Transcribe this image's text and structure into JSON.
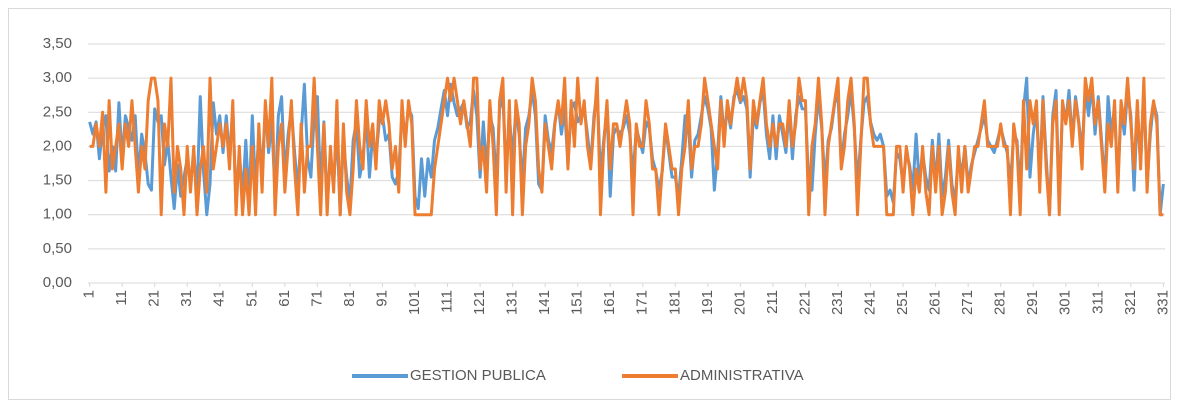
{
  "chart_data": {
    "type": "line",
    "x": [
      1,
      2,
      3,
      4,
      5,
      6,
      7,
      8,
      9,
      10,
      11,
      12,
      13,
      14,
      15,
      16,
      17,
      18,
      19,
      20,
      21,
      22,
      23,
      24,
      25,
      26,
      27,
      28,
      29,
      30,
      31,
      32,
      33,
      34,
      35,
      36,
      37,
      38,
      39,
      40,
      41,
      42,
      43,
      44,
      45,
      46,
      47,
      48,
      49,
      50,
      51,
      52,
      53,
      54,
      55,
      56,
      57,
      58,
      59,
      60,
      61,
      62,
      63,
      64,
      65,
      66,
      67,
      68,
      69,
      70,
      71,
      72,
      73,
      74,
      75,
      76,
      77,
      78,
      79,
      80,
      81,
      82,
      83,
      84,
      85,
      86,
      87,
      88,
      89,
      90,
      91,
      92,
      93,
      94,
      95,
      96,
      97,
      98,
      99,
      100,
      101,
      102,
      103,
      104,
      105,
      106,
      107,
      108,
      109,
      110,
      111,
      112,
      113,
      114,
      115,
      116,
      117,
      118,
      119,
      120,
      121,
      122,
      123,
      124,
      125,
      126,
      127,
      128,
      129,
      130,
      131,
      132,
      133,
      134,
      135,
      136,
      137,
      138,
      139,
      140,
      141,
      142,
      143,
      144,
      145,
      146,
      147,
      148,
      149,
      150,
      151,
      152,
      153,
      154,
      155,
      156,
      157,
      158,
      159,
      160,
      161,
      162,
      163,
      164,
      165,
      166,
      167,
      168,
      169,
      170,
      171,
      172,
      173,
      174,
      175,
      176,
      177,
      178,
      179,
      180,
      181,
      182,
      183,
      184,
      185,
      186,
      187,
      188,
      189,
      190,
      191,
      192,
      193,
      194,
      195,
      196,
      197,
      198,
      199,
      200,
      201,
      202,
      203,
      204,
      205,
      206,
      207,
      208,
      209,
      210,
      211,
      212,
      213,
      214,
      215,
      216,
      217,
      218,
      219,
      220,
      221,
      222,
      223,
      224,
      225,
      226,
      227,
      228,
      229,
      230,
      231,
      232,
      233,
      234,
      235,
      236,
      237,
      238,
      239,
      240,
      241,
      242,
      243,
      244,
      245,
      246,
      247,
      248,
      249,
      250,
      251,
      252,
      253,
      254,
      255,
      256,
      257,
      258,
      259,
      260,
      261,
      262,
      263,
      264,
      265,
      266,
      267,
      268,
      269,
      270,
      271,
      272,
      273,
      274,
      275,
      276,
      277,
      278,
      279,
      280,
      281,
      282,
      283,
      284,
      285,
      286,
      287,
      288,
      289,
      290,
      291,
      292,
      293,
      294,
      295,
      296,
      297,
      298,
      299,
      300,
      301,
      302,
      303,
      304,
      305,
      306,
      307,
      308,
      309,
      310,
      311,
      312,
      313,
      314,
      315,
      316,
      317,
      318,
      319,
      320,
      321,
      322,
      323,
      324,
      325,
      326,
      327,
      328,
      329,
      330,
      331
    ],
    "xlim": [
      1,
      331
    ],
    "xticks": [
      1,
      11,
      21,
      31,
      41,
      51,
      61,
      71,
      81,
      91,
      101,
      111,
      121,
      131,
      141,
      151,
      161,
      171,
      181,
      191,
      201,
      211,
      221,
      231,
      241,
      251,
      261,
      271,
      281,
      291,
      301,
      311,
      321,
      331
    ],
    "ylim": [
      0,
      3.5
    ],
    "yticks": [
      {
        "value": 0,
        "label": "0,00"
      },
      {
        "value": 0.5,
        "label": "0,50"
      },
      {
        "value": 1,
        "label": "1,00"
      },
      {
        "value": 1.5,
        "label": "1,50"
      },
      {
        "value": 2,
        "label": "2,00"
      },
      {
        "value": 2.5,
        "label": "2,50"
      },
      {
        "value": 3,
        "label": "3,00"
      },
      {
        "value": 3.5,
        "label": "3,50"
      }
    ],
    "grid": true,
    "legend": "bottom",
    "series": [
      {
        "name": "GESTION PUBLICA",
        "color": "#5b9bd5",
        "values": [
          2.36,
          2.18,
          2.36,
          1.82,
          2.27,
          2.45,
          1.64,
          2,
          1.64,
          2.64,
          1.82,
          2.45,
          2.27,
          2.09,
          2.45,
          1.55,
          2.18,
          1.91,
          1.45,
          1.36,
          2.55,
          2.36,
          2.45,
          1.73,
          2.09,
          1.55,
          1.09,
          1.73,
          1.27,
          1.55,
          1.82,
          1.45,
          1.91,
          1.27,
          2.73,
          1.64,
          1,
          1.45,
          2.64,
          2.18,
          2.45,
          1.91,
          2.45,
          1.82,
          2.55,
          1.18,
          1.91,
          1.27,
          2.09,
          1.18,
          2.45,
          1.36,
          2.18,
          1.64,
          2.55,
          1.91,
          2.36,
          1.27,
          2.45,
          2.73,
          1.55,
          2.18,
          2.55,
          1.91,
          1.36,
          2.18,
          2.91,
          1.82,
          1.55,
          2.45,
          2.73,
          1.36,
          2.36,
          1.18,
          1.82,
          1.45,
          2.27,
          1,
          2.09,
          1.55,
          1.18,
          2.09,
          2.36,
          1.55,
          1.82,
          2.45,
          1.55,
          2.18,
          1.82,
          2.36,
          2.45,
          2.09,
          2.18,
          1.55,
          1.45,
          1.64,
          2.45,
          2.18,
          2.55,
          2.45,
          1.27,
          1.09,
          1.82,
          1.27,
          1.82,
          1.55,
          2.09,
          2.27,
          2.55,
          2.82,
          2.45,
          2.91,
          2.64,
          2.45,
          2.55,
          2.64,
          2.27,
          2.36,
          2.82,
          2.45,
          1.55,
          2.36,
          1.64,
          2.45,
          2.27,
          1.45,
          2.55,
          2.73,
          1.64,
          2.45,
          1.82,
          2.55,
          2.18,
          1.45,
          2.27,
          2.45,
          2.82,
          2.45,
          1.45,
          1.36,
          2.45,
          2.09,
          1.91,
          2.36,
          2.64,
          2.18,
          2.55,
          1.73,
          2.55,
          2.64,
          2.36,
          2.45,
          2.55,
          2.18,
          1.73,
          2.45,
          2.82,
          1.55,
          2.09,
          2.55,
          1.27,
          2.18,
          2.27,
          2.18,
          2.27,
          2.45,
          2.18,
          1.55,
          2.27,
          2.09,
          1.91,
          2.36,
          2.27,
          1.82,
          1.64,
          1.36,
          1.64,
          2.27,
          1.91,
          1.55,
          1.55,
          1.27,
          1.82,
          2.45,
          2.36,
          1.55,
          2.09,
          2.18,
          2.45,
          2.73,
          2.55,
          2.27,
          1.36,
          1.91,
          2.73,
          2.18,
          2.55,
          2.27,
          2.73,
          2.82,
          2.64,
          2.73,
          2.55,
          1.55,
          2.45,
          2.27,
          2.64,
          2.82,
          2.18,
          1.82,
          2.45,
          1.82,
          2.45,
          2.18,
          1.91,
          2.55,
          1.82,
          2.45,
          2.73,
          2.55,
          2.55,
          1.45,
          1.36,
          2.18,
          2.73,
          2.27,
          1.45,
          2.09,
          2.27,
          2.64,
          2.73,
          1.73,
          2.18,
          2.45,
          2.82,
          2.27,
          1.45,
          2.09,
          2.64,
          2.73,
          2.36,
          2.18,
          2.09,
          2.18,
          2,
          1.27,
          1.36,
          1.18,
          1.91,
          1.82,
          1.45,
          1.91,
          1.73,
          1.36,
          2.18,
          1.45,
          1.91,
          1.55,
          1.36,
          2.09,
          1.45,
          2.18,
          1.27,
          1.55,
          2.09,
          1.45,
          1.18,
          1.91,
          1.55,
          2,
          1.45,
          1.73,
          1.91,
          2.09,
          2.27,
          2.45,
          2.09,
          2,
          1.91,
          2.09,
          2.27,
          2.09,
          1.91,
          1.45,
          2.18,
          2.09,
          1.36,
          2.55,
          3,
          1.55,
          2.18,
          2.55,
          1.55,
          2.73,
          1.82,
          1,
          2.45,
          2.82,
          1.18,
          2.55,
          2.36,
          2.82,
          2.09,
          2.73,
          2.36,
          1.91,
          2.82,
          2.45,
          2.91,
          2.18,
          2.73,
          2.09,
          1.45,
          2.73,
          2.18,
          2.55,
          1.45,
          2.55,
          2.18,
          2.82,
          2.45,
          1.36,
          2.55,
          1.73,
          2.82,
          1.45,
          2.18,
          2.64,
          2.45,
          1,
          1.45
        ]
      },
      {
        "name": "ADMINISTRATIVA",
        "color": "#ed7d31",
        "values": [
          2,
          2,
          2.33,
          2,
          2.5,
          1.33,
          2.67,
          1.67,
          2,
          2.33,
          1.67,
          2.33,
          2,
          2.67,
          2,
          1.33,
          2,
          1.67,
          2.67,
          3,
          3,
          2.67,
          1,
          2.33,
          2,
          3,
          1.33,
          2,
          1.67,
          1,
          2,
          1.33,
          2,
          1,
          1.67,
          2,
          1.33,
          3,
          1.67,
          2,
          2.33,
          2,
          2.33,
          1.67,
          2.67,
          1,
          2,
          1,
          1.67,
          1,
          2,
          1,
          2.33,
          1.33,
          2.67,
          2,
          3,
          1,
          2,
          2.33,
          1.33,
          2,
          2.67,
          1.67,
          1,
          2.33,
          1.33,
          2,
          2,
          3,
          2,
          1,
          2.33,
          1,
          2,
          1.33,
          2.67,
          1,
          2.33,
          1.33,
          1,
          1.67,
          2.67,
          2,
          1.67,
          2.67,
          2,
          2.33,
          1.67,
          2.67,
          2.33,
          2.67,
          2.33,
          1.67,
          2,
          1.33,
          2.67,
          2,
          2.67,
          2.33,
          1,
          1,
          1,
          1,
          1,
          1,
          1.67,
          2,
          2.33,
          2.67,
          3,
          2.67,
          3,
          2.67,
          2.33,
          2.67,
          2.33,
          2,
          3,
          3,
          1.67,
          2,
          1.33,
          2.67,
          2,
          1,
          2.67,
          3,
          1.33,
          2.67,
          1,
          2.67,
          2.33,
          1,
          2,
          2.33,
          3,
          2.67,
          1.67,
          1.33,
          2.33,
          2,
          1.67,
          2.33,
          2.67,
          2.33,
          3,
          1.67,
          2.67,
          2,
          3,
          2.33,
          2.67,
          2,
          1.67,
          2.33,
          3,
          1,
          2,
          2.67,
          1.67,
          2.33,
          2.33,
          2,
          2.33,
          2.67,
          2.33,
          1,
          2.33,
          2,
          2,
          2.67,
          2.33,
          1.67,
          1.67,
          1,
          1.67,
          2.33,
          2,
          1.67,
          1.67,
          1,
          1.67,
          2,
          2.67,
          1.67,
          2,
          2,
          2.33,
          3,
          2.67,
          2.33,
          2,
          1.67,
          2.67,
          2,
          2.67,
          2.33,
          2.67,
          3,
          2.67,
          3,
          2.67,
          1.67,
          2.67,
          2.33,
          2.67,
          3,
          2.33,
          2,
          2.33,
          2,
          2.33,
          2.33,
          2,
          2.67,
          2,
          2.33,
          3,
          2.67,
          2.67,
          1,
          2,
          2.33,
          3,
          2.33,
          1,
          2,
          2.33,
          2.67,
          3,
          1.67,
          2,
          2.67,
          3,
          2.33,
          1,
          2,
          3,
          3,
          2.33,
          2,
          2,
          2,
          2,
          1,
          1,
          1,
          2,
          2,
          1.33,
          2,
          1.67,
          1,
          1.67,
          1.33,
          2,
          1.33,
          1,
          2,
          1.33,
          2,
          1,
          1.33,
          2,
          1.33,
          1,
          2,
          1.33,
          2,
          1.33,
          1.67,
          2,
          2,
          2.33,
          2.67,
          2,
          2,
          2,
          2,
          2.33,
          2,
          2,
          1,
          2.33,
          2,
          1,
          2.67,
          1.67,
          2.67,
          2.33,
          2.67,
          1.33,
          2.67,
          1.67,
          1,
          2.33,
          2.67,
          1,
          2.67,
          2.33,
          2.67,
          2,
          2.67,
          2.33,
          1.67,
          3,
          2.67,
          3,
          2.33,
          2.67,
          2,
          1.33,
          2.33,
          2,
          2.67,
          1.33,
          2.67,
          2.33,
          3,
          2.33,
          1.67,
          2.67,
          1.67,
          3,
          1.33,
          2.33,
          2.67,
          2.33,
          1,
          1
        ]
      }
    ]
  }
}
